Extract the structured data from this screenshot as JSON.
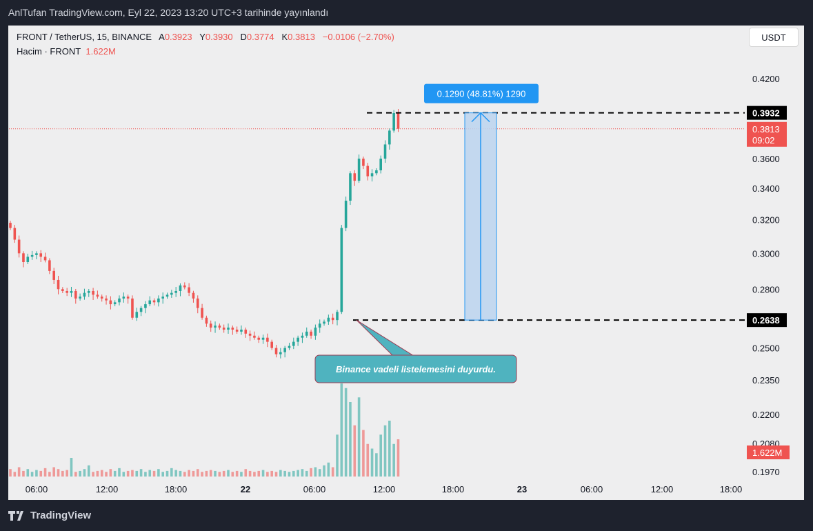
{
  "header": {
    "caption": "AnlTufan TradingView.com, Eyl 22, 2023 13:20 UTC+3 tarihinde yayınlandı"
  },
  "legend": {
    "symbol": "FRONT / TetherUS, 15, BINANCE",
    "a_label": "A",
    "a_value": "0.3923",
    "y_label": "Y",
    "y_value": "0.3930",
    "d_label": "D",
    "d_value": "0.3774",
    "k_label": "K",
    "k_value": "0.3813",
    "change": "−0.0106 (−2.70%)",
    "volume_label": "Hacim · FRONT",
    "volume_value": "1.622M"
  },
  "currency_button": "USDT",
  "footer": {
    "brand": "TradingView"
  },
  "colors": {
    "up": "#26a69a",
    "down": "#ef5350",
    "measure": "#2196f3",
    "callout": "#4fb3bf"
  },
  "chart_data": {
    "type": "candlestick",
    "symbol": "FRONT / TetherUS",
    "interval": "15",
    "exchange": "BINANCE",
    "y_axis": {
      "scale": "log",
      "ticks": [
        0.42,
        0.36,
        0.34,
        0.32,
        0.3,
        0.28,
        0.25,
        0.235,
        0.22,
        0.208,
        0.197
      ],
      "tick_labels": [
        "0.4200",
        "0.3600",
        "0.3400",
        "0.3200",
        "0.3000",
        "0.2800",
        "0.2500",
        "0.2350",
        "0.2200",
        "0.2080",
        "0.1970"
      ]
    },
    "x_axis": {
      "tick_labels": [
        "06:00",
        "12:00",
        "18:00",
        "22",
        "06:00",
        "12:00",
        "18:00",
        "23",
        "06:00",
        "12:00",
        "18:00"
      ],
      "bold_ticks": [
        "22",
        "23"
      ]
    },
    "price_labels": [
      {
        "value": "0.3932",
        "style": "level"
      },
      {
        "value": "0.3813",
        "sub": "09:02",
        "style": "last"
      },
      {
        "value": "0.2638",
        "style": "level"
      }
    ],
    "volume_label": "1.622M",
    "levels": [
      0.3932,
      0.2638
    ],
    "last_price": 0.3813,
    "measure": {
      "label": "0.1290 (48.81%) 1290",
      "from": 0.2638,
      "to": 0.3932
    },
    "annotation": {
      "text": "Binance vadeli listelemesini duyurdu.",
      "points_to": 0.2638
    },
    "closes": [
      0.315,
      0.308,
      0.3,
      0.295,
      0.298,
      0.299,
      0.3,
      0.298,
      0.296,
      0.29,
      0.285,
      0.28,
      0.279,
      0.278,
      0.279,
      0.275,
      0.276,
      0.278,
      0.279,
      0.277,
      0.276,
      0.275,
      0.274,
      0.272,
      0.273,
      0.275,
      0.276,
      0.275,
      0.265,
      0.268,
      0.27,
      0.272,
      0.274,
      0.273,
      0.275,
      0.276,
      0.277,
      0.278,
      0.279,
      0.282,
      0.281,
      0.278,
      0.275,
      0.27,
      0.265,
      0.262,
      0.26,
      0.261,
      0.26,
      0.259,
      0.26,
      0.259,
      0.258,
      0.259,
      0.257,
      0.256,
      0.255,
      0.254,
      0.255,
      0.253,
      0.25,
      0.247,
      0.248,
      0.25,
      0.251,
      0.253,
      0.255,
      0.256,
      0.258,
      0.256,
      0.26,
      0.262,
      0.263,
      0.265,
      0.2638,
      0.268,
      0.315,
      0.332,
      0.35,
      0.345,
      0.36,
      0.355,
      0.348,
      0.35,
      0.352,
      0.36,
      0.37,
      0.38,
      0.393,
      0.3813
    ],
    "volumes_relative": [
      0.08,
      0.05,
      0.1,
      0.06,
      0.08,
      0.05,
      0.07,
      0.06,
      0.09,
      0.05,
      0.1,
      0.08,
      0.06,
      0.07,
      0.2,
      0.05,
      0.06,
      0.08,
      0.12,
      0.05,
      0.06,
      0.07,
      0.05,
      0.08,
      0.06,
      0.09,
      0.05,
      0.06,
      0.07,
      0.06,
      0.08,
      0.05,
      0.07,
      0.06,
      0.08,
      0.05,
      0.06,
      0.09,
      0.07,
      0.06,
      0.05,
      0.07,
      0.06,
      0.08,
      0.05,
      0.06,
      0.07,
      0.06,
      0.05,
      0.06,
      0.07,
      0.05,
      0.06,
      0.05,
      0.08,
      0.06,
      0.05,
      0.06,
      0.07,
      0.05,
      0.06,
      0.05,
      0.07,
      0.06,
      0.05,
      0.06,
      0.07,
      0.08,
      0.06,
      0.09,
      0.1,
      0.08,
      0.12,
      0.15,
      0.1,
      0.45,
      1.0,
      0.95,
      0.8,
      0.55,
      0.85,
      0.5,
      0.35,
      0.3,
      0.25,
      0.45,
      0.55,
      0.6,
      0.35,
      0.4
    ]
  }
}
